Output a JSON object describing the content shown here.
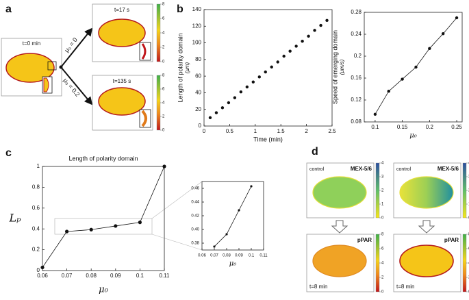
{
  "chart_data": [
    {
      "type": "scatter",
      "color": "#111111",
      "ylabel": [
        "Length of polarity domain",
        "(μm)"
      ],
      "xlabel": "Time (min)",
      "x": [
        0.12,
        0.24,
        0.36,
        0.48,
        0.6,
        0.72,
        0.84,
        0.96,
        1.08,
        1.2,
        1.32,
        1.44,
        1.56,
        1.68,
        1.8,
        1.92,
        2.04,
        2.16,
        2.28,
        2.4
      ],
      "values": [
        10,
        16,
        22,
        28,
        34,
        41,
        47,
        53,
        59,
        65,
        71,
        77,
        84,
        90,
        96,
        102,
        108,
        115,
        121,
        127
      ],
      "xlim": [
        0,
        2.5
      ],
      "xticks": [
        0,
        0.5,
        1,
        1.5,
        2,
        2.5
      ],
      "ylim": [
        0,
        140
      ],
      "yticks": [
        0,
        20,
        40,
        60,
        80,
        100,
        120,
        140
      ]
    },
    {
      "type": "line",
      "color": "#111111",
      "ylabel": [
        "Speed of emerging domain",
        "(μm/s)"
      ],
      "xlabel": "μ₀",
      "x": [
        0.1,
        0.125,
        0.15,
        0.175,
        0.2,
        0.225,
        0.25
      ],
      "values": [
        0.094,
        0.136,
        0.158,
        0.18,
        0.214,
        0.241,
        0.27
      ],
      "xlim": [
        0.08,
        0.26
      ],
      "xticks": [
        0.1,
        0.15,
        0.2,
        0.25
      ],
      "ylim": [
        0.08,
        0.28
      ],
      "yticks": [
        0.08,
        0.12,
        0.16,
        0.2,
        0.24,
        0.28
      ]
    },
    {
      "type": "line",
      "color": "#111111",
      "title": "Length of polarity domain",
      "ylabel": "Lₚ",
      "xlabel": "μ₀",
      "x": [
        0.06,
        0.07,
        0.08,
        0.09,
        0.1,
        0.11
      ],
      "values": [
        0.03,
        0.375,
        0.393,
        0.428,
        0.463,
        1.0
      ],
      "xlim": [
        0.06,
        0.11
      ],
      "xticks": [
        0.06,
        0.07,
        0.08,
        0.09,
        0.1,
        0.11
      ],
      "ylim": [
        0,
        1
      ],
      "yticks": [
        0,
        0.2,
        0.4,
        0.6,
        0.8,
        1
      ]
    },
    {
      "type": "line",
      "color": "#111111",
      "xlabel": "μ₀",
      "x": [
        0.07,
        0.08,
        0.09,
        0.1
      ],
      "values": [
        0.375,
        0.393,
        0.428,
        0.463
      ],
      "xlim": [
        0.06,
        0.11
      ],
      "xticks": [
        0.06,
        0.07,
        0.08,
        0.09,
        0.1,
        0.11
      ],
      "ylim": [
        0.37,
        0.47
      ],
      "yticks": [
        0.38,
        {
          "value": 0.4,
          "label": "0.40"
        },
        0.42,
        0.44,
        0.46
      ]
    }
  ],
  "panels": {
    "a": {
      "label": "a",
      "start": "t=0 min",
      "mu_top": "μ₀ = 0",
      "mu_bottom": "μ₀ = 0.2",
      "t_top": "t=17 s",
      "t_bottom": "t=135 s"
    },
    "b": {
      "label": "b"
    },
    "c": {
      "label": "c"
    },
    "d": {
      "label": "d",
      "control": "control",
      "mex": "MEX-5/6",
      "ppar": "pPAR",
      "time": "t=8 min"
    }
  },
  "colorbars": [
    {
      "ticks": [
        0,
        2,
        4,
        6,
        8
      ]
    },
    {
      "ticks": [
        0,
        2,
        4,
        6,
        8
      ]
    },
    {
      "ticks": [
        0,
        1,
        2,
        3,
        4
      ]
    },
    {
      "ticks": [
        0,
        1,
        2,
        3,
        4
      ]
    },
    {
      "ticks": [
        0,
        2,
        4,
        6,
        8
      ]
    },
    {
      "ticks": [
        0,
        2,
        4,
        6,
        8
      ]
    }
  ]
}
